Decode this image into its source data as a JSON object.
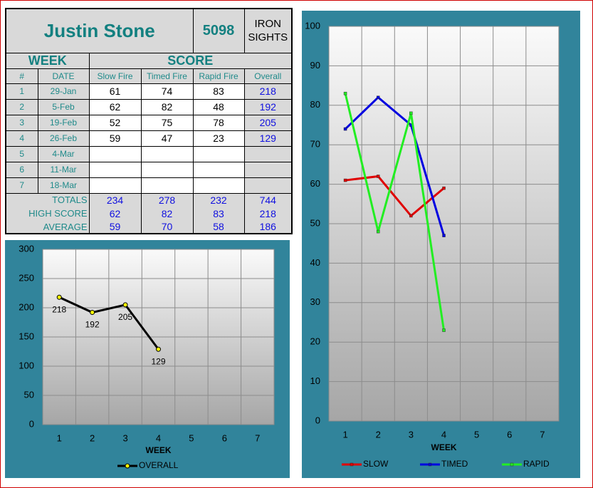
{
  "table": {
    "name": "Justin Stone",
    "id": "5098",
    "category": "IRON SIGHTS",
    "groups": [
      "WEEK",
      "SCORE"
    ],
    "columns": [
      "#",
      "DATE",
      "Slow Fire",
      "Timed Fire",
      "Rapid Fire",
      "Overall"
    ],
    "rows": [
      [
        1,
        "29-Jan",
        61,
        74,
        83,
        218
      ],
      [
        2,
        "5-Feb",
        62,
        82,
        48,
        192
      ],
      [
        3,
        "19-Feb",
        52,
        75,
        78,
        205
      ],
      [
        4,
        "26-Feb",
        59,
        47,
        23,
        129
      ],
      [
        5,
        "4-Mar",
        null,
        null,
        null,
        null
      ],
      [
        6,
        "11-Mar",
        null,
        null,
        null,
        null
      ],
      [
        7,
        "18-Mar",
        null,
        null,
        null,
        null
      ]
    ],
    "summary": [
      {
        "label": "TOTALS",
        "values": [
          234,
          278,
          232,
          744
        ]
      },
      {
        "label": "HIGH SCORE",
        "values": [
          62,
          82,
          83,
          218
        ]
      },
      {
        "label": "AVERAGE",
        "values": [
          59,
          70,
          58,
          186
        ]
      }
    ]
  },
  "chart_data": [
    {
      "type": "line",
      "categories": [
        1,
        2,
        3,
        4,
        5,
        6,
        7
      ],
      "x_label": "WEEK",
      "ylim": [
        0,
        300
      ],
      "yticks": [
        0,
        50,
        100,
        150,
        200,
        250,
        300
      ],
      "grid": true,
      "data_labels": true,
      "series": [
        {
          "name": "OVERALL",
          "color": "#000000",
          "marker_color": "#ffff00",
          "values": [
            218,
            192,
            205,
            129,
            null,
            null,
            null
          ]
        }
      ]
    },
    {
      "type": "line",
      "categories": [
        1,
        2,
        3,
        4,
        5,
        6,
        7
      ],
      "x_label": "WEEK",
      "ylim": [
        0,
        100
      ],
      "yticks": [
        0,
        10,
        20,
        30,
        40,
        50,
        60,
        70,
        80,
        90,
        100
      ],
      "grid": true,
      "data_labels": false,
      "series": [
        {
          "name": "SLOW",
          "color": "#e00000",
          "values": [
            61,
            62,
            52,
            59,
            null,
            null,
            null
          ]
        },
        {
          "name": "TIMED",
          "color": "#0000e0",
          "values": [
            74,
            82,
            75,
            47,
            null,
            null,
            null
          ]
        },
        {
          "name": "RAPID",
          "color": "#22ee22",
          "values": [
            83,
            48,
            78,
            23,
            null,
            null,
            null
          ]
        }
      ]
    }
  ]
}
